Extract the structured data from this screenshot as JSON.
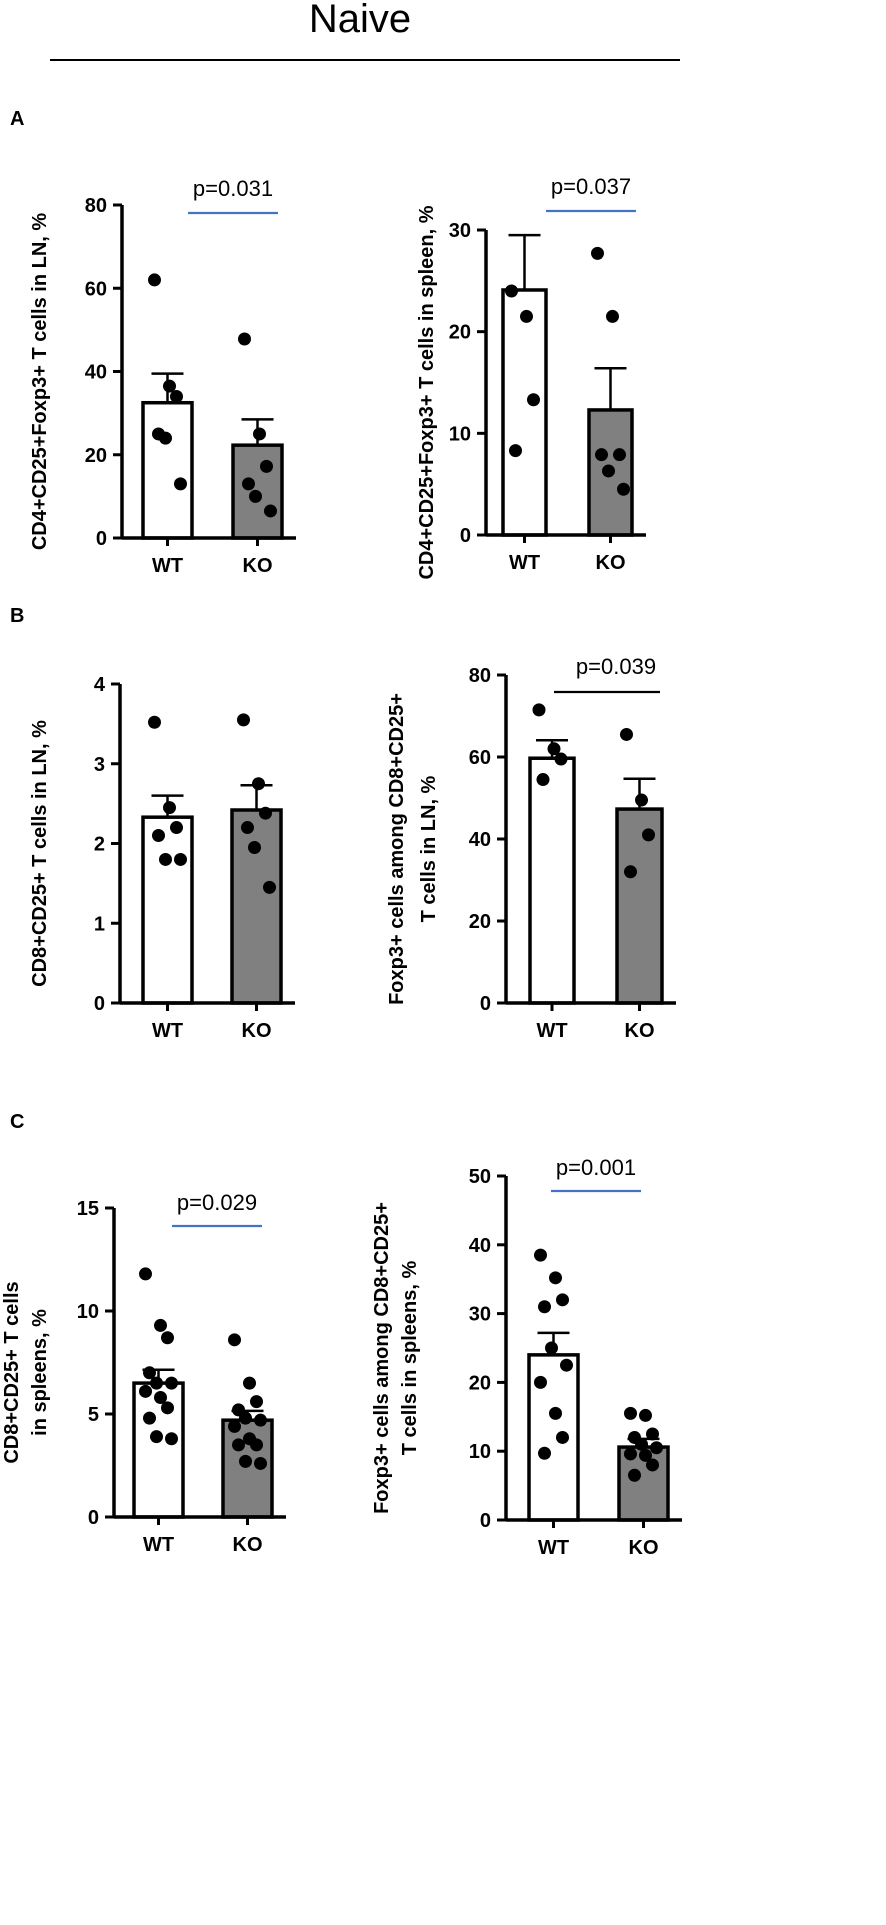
{
  "figure": {
    "title": "Naive",
    "panels": [
      "A",
      "B",
      "C"
    ],
    "colors": {
      "wt_fill": "#ffffff",
      "ko_fill": "#808080",
      "axis": "#000000",
      "dot": "#000000",
      "sig_line_blue": "#4472c4",
      "sig_line_black": "#000000"
    }
  },
  "chart_data": [
    {
      "id": "A-left",
      "panel": "A",
      "type": "bar",
      "ylabel": "CD4+CD25+Foxp3+ T cells in LN, %",
      "categories": [
        "WT",
        "KO"
      ],
      "values": [
        32.5,
        22.3
      ],
      "errors": [
        7.0,
        6.2
      ],
      "points": [
        [
          62.0,
          36.5,
          34.0,
          25.0,
          24.0,
          13.0
        ],
        [
          47.8,
          25.0,
          17.2,
          13.0,
          10.0,
          6.5
        ]
      ],
      "ylim": [
        0,
        80
      ],
      "yticks": [
        "0",
        "20",
        "40",
        "60",
        "80"
      ],
      "annotation": "p=0.031",
      "annotation_line": "blue"
    },
    {
      "id": "A-right",
      "panel": "A",
      "type": "bar",
      "ylabel": "CD4+CD25+Foxp3+ T cells in spleen, %",
      "categories": [
        "WT",
        "KO"
      ],
      "values": [
        24.1,
        12.3
      ],
      "errors": [
        5.4,
        4.1
      ],
      "points": [
        [
          24.0,
          21.5,
          13.3,
          8.3
        ],
        [
          27.7,
          21.5,
          7.9,
          7.9,
          6.3,
          4.5
        ]
      ],
      "ylim": [
        0,
        30
      ],
      "yticks": [
        "0",
        "10",
        "20",
        "30"
      ],
      "annotation": "p=0.037",
      "annotation_line": "blue"
    },
    {
      "id": "B-left",
      "panel": "B",
      "type": "bar",
      "ylabel": "CD8+CD25+ T cells  in LN, %",
      "categories": [
        "WT",
        "KO"
      ],
      "values": [
        2.33,
        2.42
      ],
      "errors": [
        0.27,
        0.31
      ],
      "points": [
        [
          3.52,
          2.45,
          2.2,
          2.1,
          1.8,
          1.8
        ],
        [
          3.55,
          2.75,
          2.38,
          2.2,
          1.95,
          1.45
        ]
      ],
      "ylim": [
        0,
        4
      ],
      "yticks": [
        "0",
        "1",
        "2",
        "3",
        "4"
      ],
      "annotation": "",
      "annotation_line": "none"
    },
    {
      "id": "B-right",
      "panel": "B",
      "type": "bar",
      "ylabel_lines": [
        "Foxp3+ cells among CD8+CD25+",
        "T cells in LN, %"
      ],
      "categories": [
        "WT",
        "KO"
      ],
      "values": [
        59.7,
        47.3
      ],
      "errors": [
        4.4,
        7.4
      ],
      "points": [
        [
          71.5,
          62.0,
          59.5,
          54.5
        ],
        [
          65.5,
          49.5,
          41.0,
          32.0
        ]
      ],
      "ylim": [
        0,
        80
      ],
      "yticks": [
        "0",
        "20",
        "40",
        "60",
        "80"
      ],
      "annotation": "p=0.039",
      "annotation_line": "black"
    },
    {
      "id": "C-left",
      "panel": "C",
      "type": "bar",
      "ylabel_lines": [
        "CD8+CD25+ T cells",
        "in spleens, %"
      ],
      "categories": [
        "WT",
        "KO"
      ],
      "values": [
        6.5,
        4.7
      ],
      "errors": [
        0.65,
        0.45
      ],
      "points": [
        [
          11.8,
          9.3,
          8.7,
          7.0,
          6.5,
          6.5,
          6.1,
          5.8,
          5.3,
          4.8,
          3.9,
          3.8
        ],
        [
          8.6,
          6.5,
          5.6,
          5.2,
          4.8,
          4.7,
          4.4,
          3.8,
          3.5,
          3.5,
          2.7,
          2.6
        ]
      ],
      "ylim": [
        0,
        15
      ],
      "yticks": [
        "0",
        "5",
        "10",
        "15"
      ],
      "annotation": "p=0.029",
      "annotation_line": "blue"
    },
    {
      "id": "C-right",
      "panel": "C",
      "type": "bar",
      "ylabel_lines": [
        "Foxp3+ cells among CD8+CD25+",
        "T cells in spleens, %"
      ],
      "categories": [
        "WT",
        "KO"
      ],
      "values": [
        24.0,
        10.6
      ],
      "errors": [
        3.2,
        1.2
      ],
      "points": [
        [
          38.5,
          35.2,
          32.0,
          31.0,
          25.0,
          22.5,
          20.0,
          15.5,
          12.0,
          9.7
        ],
        [
          15.5,
          15.2,
          12.5,
          12.0,
          11.0,
          10.5,
          9.6,
          9.4,
          8.0,
          6.5
        ]
      ],
      "ylim": [
        0,
        50
      ],
      "yticks": [
        "0",
        "10",
        "20",
        "30",
        "40",
        "50"
      ],
      "annotation": "p=0.001",
      "annotation_line": "blue"
    }
  ]
}
